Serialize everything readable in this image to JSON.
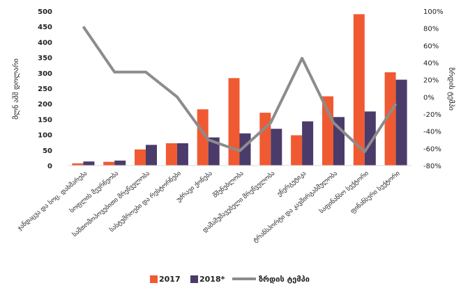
{
  "chart_data": {
    "type": "bar",
    "title": "",
    "categories": [
      "ჯანდაცვა და სოც. დახმარება",
      "სოფლის მეურნეობა",
      "სამთომოპოვებითი მრეწველობა",
      "სასტუმროები და რესტორნები",
      "უძრავი ქონება",
      "მშენებლობა",
      "დამამუშავებელი მრეწველობა",
      "ენერგეტიკა",
      "ტრანსპორტი და კავშირგაბმულობა",
      "საფინანსო სექტორი",
      "ფინანსური სექტორი"
    ],
    "series": [
      {
        "name": "2017",
        "type": "bar",
        "axis": "left",
        "color": "#f05a32",
        "values": [
          7,
          12,
          52,
          72,
          182,
          283,
          171,
          98,
          224,
          490,
          302
        ]
      },
      {
        "name": "2018*",
        "type": "bar",
        "axis": "left",
        "color": "#4a3b6b",
        "values": [
          13,
          16,
          67,
          72,
          91,
          104,
          119,
          143,
          157,
          175,
          278
        ]
      },
      {
        "name": "ზრდის ტემპი",
        "type": "line",
        "axis": "right",
        "color": "#8c8c8c",
        "values": [
          82,
          29,
          29,
          0,
          -50,
          -63,
          -30,
          45,
          -30,
          -64,
          -8
        ]
      }
    ],
    "ylabel": "მლნ აშშ დოლარი",
    "y2label": "ზრდის ტემპი",
    "ylim": [
      0,
      500
    ],
    "yticks": [
      0,
      50,
      100,
      150,
      200,
      250,
      300,
      350,
      400,
      450,
      500
    ],
    "y2lim": [
      -80,
      100
    ],
    "y2ticks": [
      "-80%",
      "-60%",
      "-40%",
      "-20%",
      "0%",
      "20%",
      "40%",
      "60%",
      "80%",
      "100%"
    ],
    "grid": false,
    "legend": "bottom"
  }
}
